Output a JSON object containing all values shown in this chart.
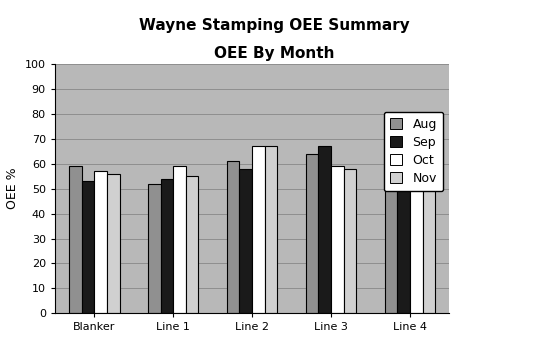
{
  "title_line1": "Wayne Stamping OEE Summary",
  "title_line2": "OEE By Month",
  "categories": [
    "Blanker",
    "Line 1",
    "Line 2",
    "Line 3",
    "Line 4"
  ],
  "months": [
    "Aug",
    "Sep",
    "Oct",
    "Nov"
  ],
  "values": {
    "Blanker": [
      59,
      53,
      57,
      56
    ],
    "Line 1": [
      52,
      54,
      59,
      55
    ],
    "Line 2": [
      61,
      58,
      67,
      67
    ],
    "Line 3": [
      64,
      67,
      59,
      58
    ],
    "Line 4": [
      56,
      52,
      59,
      59
    ]
  },
  "bar_colors": [
    "#909090",
    "#1a1a1a",
    "#ffffff",
    "#d0d0d0"
  ],
  "bar_edge_color": "#000000",
  "ylabel": "OEE %",
  "ylim": [
    0,
    100
  ],
  "yticks": [
    0,
    10,
    20,
    30,
    40,
    50,
    60,
    70,
    80,
    90,
    100
  ],
  "plot_bg_color": "#b8b8b8",
  "fig_bg_color": "#ffffff",
  "title_fontsize": 11,
  "axis_label_fontsize": 9,
  "tick_fontsize": 8,
  "legend_fontsize": 9,
  "grid_color": "#888888",
  "bar_width": 0.16
}
